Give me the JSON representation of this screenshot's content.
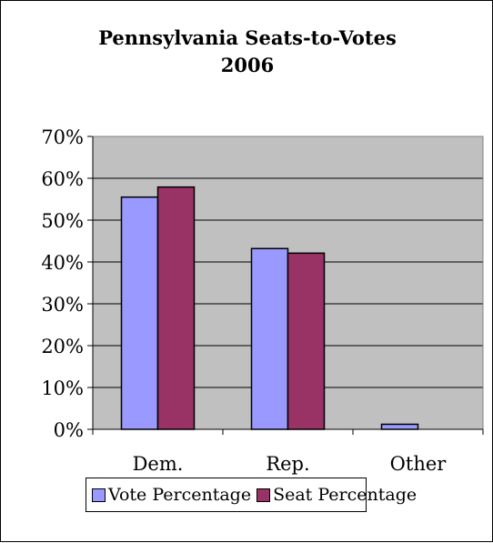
{
  "chart_data": {
    "type": "bar",
    "title_lines": [
      "Pennsylvania Seats-to-Votes",
      "2006"
    ],
    "categories": [
      "Dem.",
      "Rep.",
      "Other"
    ],
    "series": [
      {
        "name": "Vote Percentage",
        "values": [
          55.5,
          43.2,
          1.2
        ],
        "color": "#9999ff"
      },
      {
        "name": "Seat Percentage",
        "values": [
          57.9,
          42.1,
          0
        ],
        "color": "#993366"
      }
    ],
    "ylim": [
      0,
      70
    ],
    "ytick_step": 10,
    "ytick_labels": [
      "0%",
      "10%",
      "20%",
      "30%",
      "40%",
      "50%",
      "60%",
      "70%"
    ],
    "grid": true,
    "plot_background": "#c0c0c0",
    "legend_position": "bottom"
  }
}
